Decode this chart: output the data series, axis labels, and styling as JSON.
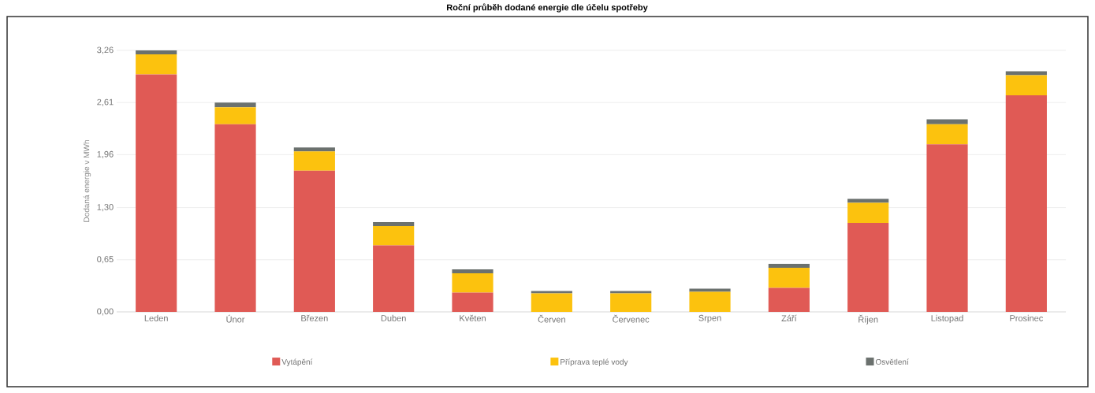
{
  "chart_data": {
    "type": "bar",
    "title": "Roční průběh dodané energie dle účelu spotřeby",
    "ylabel": "Dodaná energie v MWh",
    "categories": [
      "Leden",
      "Únor",
      "Březen",
      "Duben",
      "Květen",
      "Červen",
      "Červenec",
      "Srpen",
      "Září",
      "Říjen",
      "Listopad",
      "Prosinec"
    ],
    "stacked": true,
    "series": [
      {
        "name": "Vytápění",
        "color": "#e05a55",
        "values": [
          2.96,
          2.34,
          1.76,
          0.83,
          0.24,
          0,
          0,
          0,
          0.3,
          1.11,
          2.09,
          2.7
        ]
      },
      {
        "name": "Příprava teplé vody",
        "color": "#fcc20e",
        "values": [
          0.25,
          0.21,
          0.24,
          0.24,
          0.24,
          0.23,
          0.23,
          0.25,
          0.25,
          0.25,
          0.25,
          0.25
        ]
      },
      {
        "name": "Osvětlení",
        "color": "#6b716e",
        "values": [
          0.05,
          0.06,
          0.05,
          0.05,
          0.05,
          0.03,
          0.03,
          0.04,
          0.05,
          0.05,
          0.06,
          0.05
        ]
      }
    ],
    "ylim": [
      0,
      3.26
    ],
    "yticks": [
      {
        "value": 0,
        "label": "0,00"
      },
      {
        "value": 0.65,
        "label": "0,65"
      },
      {
        "value": 1.3,
        "label": "1,30"
      },
      {
        "value": 1.96,
        "label": "1,96"
      },
      {
        "value": 2.61,
        "label": "2,61"
      },
      {
        "value": 3.26,
        "label": "3,26"
      }
    ],
    "grid": "y",
    "legend": "bottom"
  }
}
